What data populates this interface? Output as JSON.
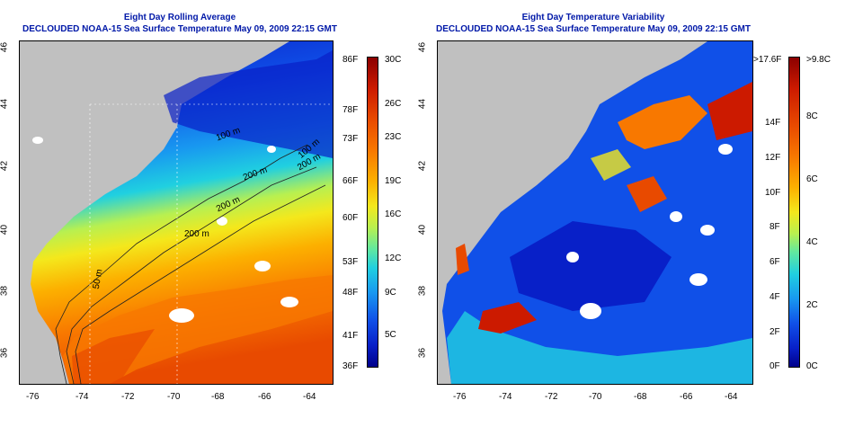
{
  "left_panel": {
    "title": "Eight Day Rolling Average",
    "subtitle": "DECLOUDED NOAA-15 Sea Surface Temperature May 09, 2009 22:15 GMT",
    "depth_labels": [
      "100 m",
      "200 m",
      "200 m",
      "100 m",
      "200 m",
      "50 m",
      "200 m"
    ],
    "colorbar_f": [
      "86F",
      "78F",
      "73F",
      "66F",
      "60F",
      "53F",
      "48F",
      "41F",
      "36F"
    ],
    "colorbar_c": [
      "30C",
      "26C",
      "23C",
      "19C",
      "16C",
      "12C",
      "9C",
      "5C"
    ]
  },
  "right_panel": {
    "title": "Eight Day Temperature Variability",
    "subtitle": "DECLOUDED NOAA-15 Sea Surface Temperature May 09, 2009 22:15 GMT",
    "colorbar_f": [
      ">17.6F",
      "14F",
      "12F",
      "10F",
      "8F",
      "6F",
      "4F",
      "2F",
      "0F"
    ],
    "colorbar_c": [
      ">9.8C",
      "8C",
      "6C",
      "4C",
      "2C",
      "0C"
    ]
  },
  "axes": {
    "x_ticks": [
      "-76",
      "-74",
      "-72",
      "-70",
      "-68",
      "-66",
      "-64"
    ],
    "y_ticks": [
      "46",
      "44",
      "42",
      "40",
      "38",
      "36"
    ]
  },
  "colors": {
    "land": "#c0c0c0",
    "cloud": "#ffffff",
    "title": "#0018a8",
    "scale": [
      "#00008b",
      "#1050e8",
      "#20d0e0",
      "#60e8a0",
      "#f4e81c",
      "#fcb000",
      "#f87800",
      "#cc1a00",
      "#8b0000"
    ]
  }
}
